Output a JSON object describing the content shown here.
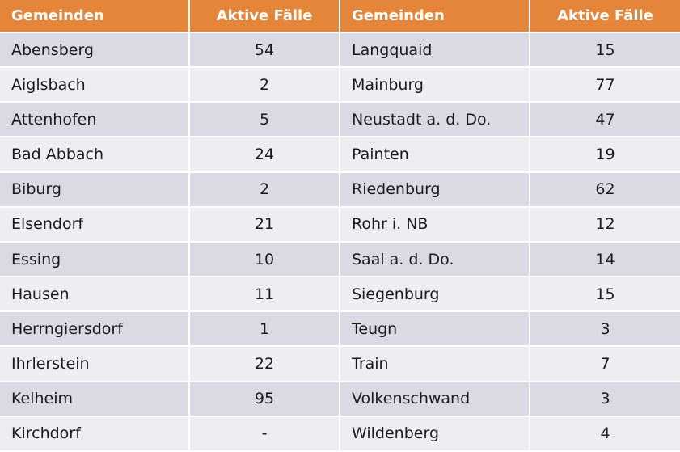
{
  "colors": {
    "header": "#E5853A",
    "row_odd": "#D9DAE3",
    "row_even": "#EDEEF2"
  },
  "table": {
    "headers": [
      "Gemeinden",
      "Aktive Fälle",
      "Gemeinden",
      "Aktive Fälle"
    ],
    "rows": [
      [
        "Abensberg",
        "54",
        "Langquaid",
        "15"
      ],
      [
        "Aiglsbach",
        "2",
        "Mainburg",
        "77"
      ],
      [
        "Attenhofen",
        "5",
        "Neustadt a. d. Do.",
        "47"
      ],
      [
        "Bad Abbach",
        "24",
        "Painten",
        "19"
      ],
      [
        "Biburg",
        "2",
        "Riedenburg",
        "62"
      ],
      [
        "Elsendorf",
        "21",
        "Rohr i. NB",
        "12"
      ],
      [
        "Essing",
        "10",
        "Saal a. d. Do.",
        "14"
      ],
      [
        "Hausen",
        "11",
        "Siegenburg",
        "15"
      ],
      [
        "Herrngiersdorf",
        "1",
        "Teugn",
        "3"
      ],
      [
        "Ihrlerstein",
        "22",
        "Train",
        "7"
      ],
      [
        "Kelheim",
        "95",
        "Volkenschwand",
        "3"
      ],
      [
        "Kirchdorf",
        "-",
        "Wildenberg",
        "4"
      ]
    ]
  }
}
